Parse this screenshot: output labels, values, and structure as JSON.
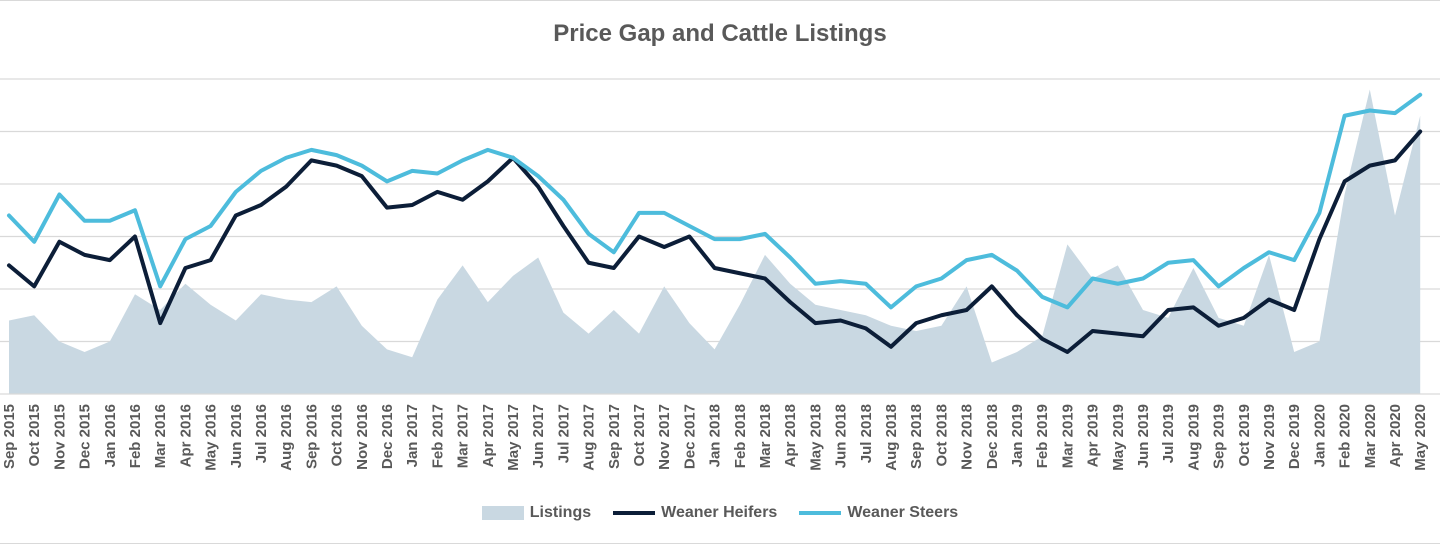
{
  "chart_data": {
    "type": "line",
    "title": "Price Gap and Cattle Listings",
    "categories": [
      "Sep 2015",
      "Oct 2015",
      "Nov 2015",
      "Dec 2015",
      "Jan 2016",
      "Feb 2016",
      "Mar 2016",
      "Apr 2016",
      "May 2016",
      "Jun 2016",
      "Jul 2016",
      "Aug 2016",
      "Sep 2016",
      "Oct 2016",
      "Nov 2016",
      "Dec 2016",
      "Jan 2017",
      "Feb 2017",
      "Mar 2017",
      "Apr 2017",
      "May 2017",
      "Jun 2017",
      "Jul 2017",
      "Aug 2017",
      "Sep 2017",
      "Oct 2017",
      "Nov 2017",
      "Dec 2017",
      "Jan 2018",
      "Feb 2018",
      "Mar 2018",
      "Apr 2018",
      "May 2018",
      "Jun 2018",
      "Jul 2018",
      "Aug 2018",
      "Sep 2018",
      "Oct 2018",
      "Nov 2018",
      "Dec 2018",
      "Jan 2019",
      "Feb 2019",
      "Mar 2019",
      "Apr 2019",
      "May 2019",
      "Jun 2019",
      "Jul 2019",
      "Aug 2019",
      "Sep 2019",
      "Oct 2019",
      "Nov 2019",
      "Dec 2019",
      "Jan 2020",
      "Feb 2020",
      "Mar 2020",
      "Apr 2020",
      "May 2020"
    ],
    "grid": true,
    "legend": "bottom",
    "series": [
      {
        "name": "Listings",
        "kind": "area",
        "color": "#c9d8e2",
        "values": [
          1.4,
          1.5,
          1.0,
          0.8,
          1.0,
          1.9,
          1.6,
          2.1,
          1.7,
          1.4,
          1.9,
          1.8,
          1.75,
          2.05,
          1.3,
          0.85,
          0.7,
          1.8,
          2.45,
          1.75,
          2.25,
          2.6,
          1.55,
          1.15,
          1.6,
          1.15,
          2.05,
          1.35,
          0.85,
          1.7,
          2.65,
          2.1,
          1.7,
          1.6,
          1.5,
          1.3,
          1.2,
          1.3,
          2.05,
          0.6,
          0.8,
          1.1,
          2.85,
          2.2,
          2.45,
          1.6,
          1.45,
          2.4,
          1.45,
          1.3,
          2.65,
          0.8,
          1.0,
          3.8,
          5.8,
          3.4,
          5.3
        ]
      },
      {
        "name": "Weaner Heifers",
        "kind": "line",
        "color": "#0c1e38",
        "values": [
          2.45,
          2.05,
          2.9,
          2.65,
          2.55,
          3.0,
          1.35,
          2.4,
          2.55,
          3.4,
          3.6,
          3.95,
          4.45,
          4.35,
          4.15,
          3.55,
          3.6,
          3.85,
          3.7,
          4.05,
          4.5,
          3.95,
          3.2,
          2.5,
          2.4,
          3.0,
          2.8,
          3.0,
          2.4,
          2.3,
          2.2,
          1.75,
          1.35,
          1.4,
          1.25,
          0.9,
          1.35,
          1.5,
          1.6,
          2.05,
          1.5,
          1.05,
          0.8,
          1.2,
          1.15,
          1.1,
          1.6,
          1.65,
          1.3,
          1.45,
          1.8,
          1.6,
          2.95,
          4.05,
          4.35,
          4.45,
          5.0
        ]
      },
      {
        "name": "Weaner Steers",
        "kind": "line",
        "color": "#4dbcdc",
        "values": [
          3.4,
          2.9,
          3.8,
          3.3,
          3.3,
          3.5,
          2.05,
          2.95,
          3.2,
          3.85,
          4.25,
          4.5,
          4.65,
          4.55,
          4.35,
          4.05,
          4.25,
          4.2,
          4.45,
          4.65,
          4.5,
          4.15,
          3.7,
          3.05,
          2.7,
          3.45,
          3.45,
          3.2,
          2.95,
          2.95,
          3.05,
          2.6,
          2.1,
          2.15,
          2.1,
          1.65,
          2.05,
          2.2,
          2.55,
          2.65,
          2.35,
          1.85,
          1.65,
          2.2,
          2.1,
          2.2,
          2.5,
          2.55,
          2.05,
          2.4,
          2.7,
          2.55,
          3.45,
          5.3,
          5.4,
          5.35,
          5.7
        ]
      }
    ]
  }
}
